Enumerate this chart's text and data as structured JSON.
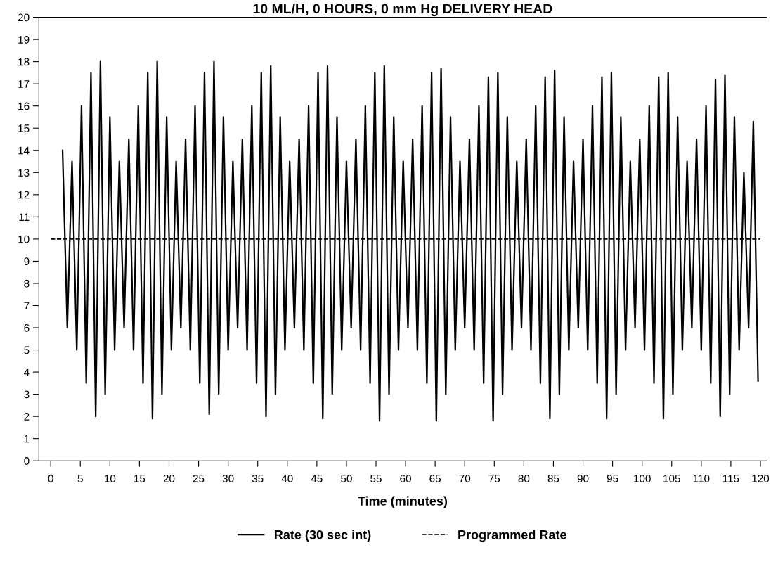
{
  "chart_data": {
    "type": "line",
    "title": "10 ML/H, 0 HOURS, 0 mm Hg DELIVERY HEAD",
    "xlabel": "Time (minutes)",
    "xlim": [
      -2,
      121
    ],
    "ylim": [
      0,
      20
    ],
    "xticks": [
      0,
      5,
      10,
      15,
      20,
      25,
      30,
      35,
      40,
      45,
      50,
      55,
      60,
      65,
      70,
      75,
      80,
      85,
      90,
      95,
      100,
      105,
      110,
      115,
      120
    ],
    "yticks": [
      0,
      1,
      2,
      3,
      4,
      5,
      6,
      7,
      8,
      9,
      10,
      11,
      12,
      13,
      14,
      15,
      16,
      17,
      18,
      19,
      20
    ],
    "grid": false,
    "legend": "bottom",
    "series": [
      {
        "name": "Rate (30 sec int)",
        "color": "#000000",
        "line_style": "solid",
        "x": [
          2,
          2.8,
          3.6,
          4.4,
          5.2,
          6,
          6.8,
          7.6,
          8.4,
          9.2,
          10,
          10.8,
          11.6,
          12.4,
          13.2,
          14,
          14.8,
          15.6,
          16.4,
          17.2,
          18,
          18.8,
          19.6,
          20.4,
          21.2,
          22,
          22.8,
          23.6,
          24.4,
          25.2,
          26,
          26.8,
          27.6,
          28.4,
          29.2,
          30,
          30.8,
          31.6,
          32.4,
          33.2,
          34,
          34.8,
          35.6,
          36.4,
          37.2,
          38,
          38.8,
          39.6,
          40.4,
          41.2,
          42,
          42.8,
          43.6,
          44.4,
          45.2,
          46,
          46.8,
          47.6,
          48.4,
          49.2,
          50,
          50.8,
          51.6,
          52.4,
          53.2,
          54,
          54.8,
          55.6,
          56.4,
          57.2,
          58,
          58.8,
          59.6,
          60.4,
          61.2,
          62,
          62.8,
          63.6,
          64.4,
          65.2,
          66,
          66.8,
          67.6,
          68.4,
          69.2,
          70,
          70.8,
          71.6,
          72.4,
          73.2,
          74,
          74.8,
          75.6,
          76.4,
          77.2,
          78,
          78.8,
          79.6,
          80.4,
          81.2,
          82,
          82.8,
          83.6,
          84.4,
          85.2,
          86,
          86.8,
          87.6,
          88.4,
          89.2,
          90,
          90.8,
          91.6,
          92.4,
          93.2,
          94,
          94.8,
          95.6,
          96.4,
          97.2,
          98,
          98.8,
          99.6,
          100.4,
          101.2,
          102,
          102.8,
          103.6,
          104.4,
          105.2,
          106,
          106.8,
          107.6,
          108.4,
          109.2,
          110,
          110.8,
          111.6,
          112.4,
          113.2,
          114,
          114.8,
          115.6,
          116.4,
          117.2,
          118,
          118.8,
          119.6
        ],
        "values": [
          14,
          6,
          13.5,
          5,
          16,
          3.5,
          17.5,
          2,
          18,
          3,
          15.5,
          5,
          13.5,
          6,
          14.5,
          5,
          16,
          3.5,
          17.5,
          1.9,
          18,
          3,
          15.5,
          5,
          13.5,
          6,
          14.5,
          5,
          16,
          3.5,
          17.5,
          2.1,
          18,
          3,
          15.5,
          5,
          13.5,
          6,
          14.5,
          5,
          16,
          3.5,
          17.5,
          2,
          17.8,
          3,
          15.5,
          5,
          13.5,
          6,
          14.5,
          5,
          16,
          3.5,
          17.5,
          1.9,
          17.8,
          3,
          15.5,
          5,
          13.5,
          6,
          14.5,
          5,
          16,
          3.5,
          17.5,
          1.8,
          17.8,
          3,
          15.5,
          5,
          13.5,
          6,
          14.5,
          5,
          16,
          3.5,
          17.5,
          1.8,
          17.7,
          3,
          15.5,
          5,
          13.5,
          6,
          14.5,
          5,
          16,
          3.5,
          17.3,
          1.8,
          17.5,
          3,
          15.5,
          5,
          13.5,
          6,
          14.5,
          5,
          16,
          3.5,
          17.3,
          1.9,
          17.6,
          3,
          15.5,
          5,
          13.5,
          6,
          14.5,
          5,
          16,
          3.5,
          17.3,
          1.9,
          17.5,
          3,
          15.5,
          5,
          13.5,
          6,
          14.5,
          5,
          16,
          3.5,
          17.3,
          1.9,
          17.5,
          3,
          15.5,
          5,
          13.5,
          6,
          14.5,
          5,
          16,
          3.5,
          17.2,
          2,
          17.4,
          3,
          15.5,
          5,
          13,
          6,
          15.3,
          3.6
        ]
      },
      {
        "name": "Programmed Rate",
        "color": "#000000",
        "line_style": "dashed",
        "x": [
          0,
          120
        ],
        "values": [
          10,
          10
        ]
      }
    ]
  }
}
